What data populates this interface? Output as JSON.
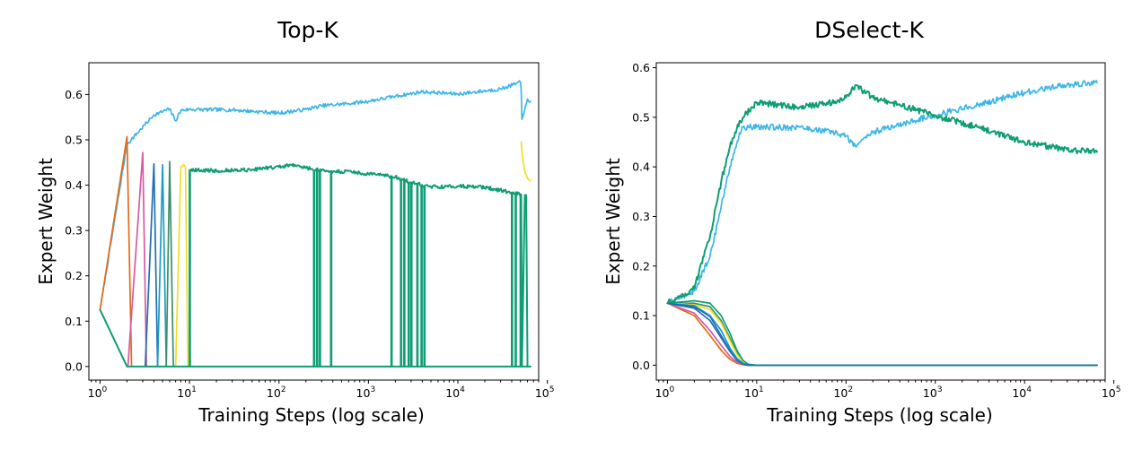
{
  "chart_data": [
    {
      "type": "line",
      "title": "Top-K",
      "xlabel": "Training Steps (log scale)",
      "ylabel": "Expert Weight",
      "xscale": "log",
      "xlim": [
        0.75,
        80000
      ],
      "ylim": [
        -0.03,
        0.67
      ],
      "xticks": [
        {
          "base": "10",
          "exp": "0",
          "value": 1
        },
        {
          "base": "10",
          "exp": "1",
          "value": 10
        },
        {
          "base": "10",
          "exp": "2",
          "value": 100
        },
        {
          "base": "10",
          "exp": "3",
          "value": 1000
        },
        {
          "base": "10",
          "exp": "4",
          "value": 10000
        },
        {
          "base": "10",
          "exp": "5",
          "value": 100000
        }
      ],
      "yticks": [
        "0.0",
        "0.1",
        "0.2",
        "0.3",
        "0.4",
        "0.5",
        "0.6"
      ],
      "grid": false,
      "legend": "none",
      "series": [
        {
          "color": "#3db6e6",
          "width": 1.7,
          "noise": 0.004,
          "x": [
            1,
            2,
            4,
            6,
            7,
            8,
            10,
            30,
            100,
            200,
            300,
            600,
            1000,
            2000,
            4000,
            10000,
            30000,
            50000,
            51000,
            52000,
            55000,
            60000,
            65000
          ],
          "y": [
            0.125,
            0.49,
            0.555,
            0.568,
            0.542,
            0.565,
            0.567,
            0.566,
            0.559,
            0.567,
            0.575,
            0.58,
            0.585,
            0.596,
            0.606,
            0.601,
            0.612,
            0.627,
            0.61,
            0.545,
            0.56,
            0.59,
            0.585
          ]
        },
        {
          "color": "#e36a18",
          "width": 1.7,
          "x": [
            1,
            2,
            2.25
          ],
          "y": [
            0.125,
            0.507,
            0
          ]
        },
        {
          "color": "#d65aa2",
          "width": 1.7,
          "x": [
            2.05,
            3,
            3.3
          ],
          "y": [
            0,
            0.472,
            0
          ]
        },
        {
          "color": "#1e6fb3",
          "width": 1.7,
          "x": [
            3.2,
            4,
            4.4
          ],
          "y": [
            0,
            0.447,
            0
          ]
        },
        {
          "color": "#1a9bc4",
          "width": 1.7,
          "x": [
            4.4,
            5,
            5.5
          ],
          "y": [
            0,
            0.445,
            0
          ]
        },
        {
          "color": "#3a8e6a",
          "width": 1.7,
          "x": [
            5.5,
            6,
            6.6
          ],
          "y": [
            0,
            0.452,
            0
          ]
        },
        {
          "color": "#f0df20",
          "width": 1.7,
          "x": [
            7,
            8,
            8.6,
            9,
            9.6,
            10
          ],
          "y": [
            0,
            0.44,
            0.445,
            0.44,
            0,
            0
          ]
        },
        {
          "color": "#f0df20",
          "width": 1.7,
          "noise": 0.003,
          "x": [
            51000,
            53000,
            56000,
            60000,
            65000
          ],
          "y": [
            0.495,
            0.46,
            0.43,
            0.415,
            0.41
          ]
        },
        {
          "color": "#0f9e74",
          "width": 2,
          "noise": 0.004,
          "x": [
            10,
            20,
            50,
            100,
            150,
            200,
            300,
            500,
            1000,
            2000,
            3000,
            5000,
            10000,
            20000,
            40000,
            50000,
            51000
          ],
          "y": [
            0.433,
            0.432,
            0.434,
            0.44,
            0.445,
            0.438,
            0.432,
            0.43,
            0.425,
            0.418,
            0.406,
            0.396,
            0.398,
            0.395,
            0.384,
            0.38,
            0.378
          ],
          "dropouts": [
            10,
            245,
            265,
            285,
            380,
            1800,
            2300,
            2500,
            2800,
            3000,
            3500,
            3900,
            4200,
            40000,
            44000,
            50000
          ],
          "tail": [
            [
              52000,
              0
            ],
            [
              56000,
              0.378
            ],
            [
              58000,
              0.378
            ],
            [
              60000,
              0
            ]
          ]
        },
        {
          "color": "#0f9e74",
          "width": 2,
          "x": [
            1,
            2,
            65000
          ],
          "y": [
            0.125,
            0,
            0
          ]
        }
      ]
    },
    {
      "type": "line",
      "title": "DSelect-K",
      "xlabel": "Training Steps (log scale)",
      "ylabel": "Expert Weight",
      "xscale": "log",
      "xlim": [
        0.75,
        80000
      ],
      "ylim": [
        -0.03,
        0.61
      ],
      "xticks": [
        {
          "base": "10",
          "exp": "0",
          "value": 1
        },
        {
          "base": "10",
          "exp": "1",
          "value": 10
        },
        {
          "base": "10",
          "exp": "2",
          "value": 100
        },
        {
          "base": "10",
          "exp": "3",
          "value": 1000
        },
        {
          "base": "10",
          "exp": "4",
          "value": 10000
        },
        {
          "base": "10",
          "exp": "5",
          "value": 100000
        }
      ],
      "yticks": [
        "0.0",
        "0.1",
        "0.2",
        "0.3",
        "0.4",
        "0.5",
        "0.6"
      ],
      "grid": false,
      "legend": "none",
      "series": [
        {
          "color": "#3db6e6",
          "width": 1.7,
          "noise": 0.006,
          "x": [
            1,
            2,
            3,
            4,
            5,
            6,
            7,
            10,
            30,
            70,
            100,
            130,
            150,
            200,
            500,
            1000,
            3000,
            10000,
            30000,
            65000
          ],
          "y": [
            0.125,
            0.15,
            0.22,
            0.32,
            0.4,
            0.45,
            0.48,
            0.48,
            0.48,
            0.47,
            0.462,
            0.44,
            0.455,
            0.47,
            0.49,
            0.505,
            0.525,
            0.55,
            0.565,
            0.57
          ]
        },
        {
          "color": "#0f9e74",
          "width": 2,
          "noise": 0.006,
          "x": [
            1,
            2,
            3,
            4,
            5,
            6,
            7,
            10,
            30,
            70,
            100,
            130,
            150,
            200,
            500,
            1000,
            3000,
            10000,
            30000,
            65000
          ],
          "y": [
            0.125,
            0.155,
            0.26,
            0.37,
            0.44,
            0.478,
            0.5,
            0.53,
            0.52,
            0.53,
            0.54,
            0.565,
            0.555,
            0.54,
            0.52,
            0.503,
            0.48,
            0.45,
            0.435,
            0.43
          ]
        },
        {
          "color": "#e36a18",
          "width": 1.7,
          "x": [
            1,
            2,
            3,
            4,
            5,
            6,
            7,
            8,
            10,
            65000
          ],
          "y": [
            0.125,
            0.1,
            0.06,
            0.03,
            0.012,
            0.004,
            0.001,
            0,
            0,
            0
          ]
        },
        {
          "color": "#d65aa2",
          "width": 1.7,
          "x": [
            1,
            2,
            3,
            4,
            5,
            6,
            7,
            8,
            10,
            65000
          ],
          "y": [
            0.125,
            0.105,
            0.07,
            0.04,
            0.018,
            0.006,
            0.002,
            0,
            0,
            0
          ]
        },
        {
          "color": "#1e6fb3",
          "width": 1.7,
          "x": [
            1,
            2,
            3,
            4,
            5,
            6,
            7,
            8,
            10,
            65000
          ],
          "y": [
            0.125,
            0.115,
            0.09,
            0.055,
            0.028,
            0.01,
            0.003,
            0,
            0,
            0
          ]
        },
        {
          "color": "#3a8e6a",
          "width": 1.7,
          "x": [
            1,
            2,
            3,
            4,
            5,
            6,
            7,
            8,
            10,
            65000
          ],
          "y": [
            0.125,
            0.125,
            0.118,
            0.09,
            0.055,
            0.025,
            0.008,
            0.002,
            0,
            0
          ]
        },
        {
          "color": "#f0df20",
          "width": 1.7,
          "x": [
            1,
            2,
            3,
            4,
            5,
            6,
            7,
            8,
            10,
            65000
          ],
          "y": [
            0.125,
            0.122,
            0.112,
            0.085,
            0.05,
            0.022,
            0.007,
            0.001,
            0,
            0
          ]
        },
        {
          "color": "#1a9bc4",
          "width": 1.7,
          "x": [
            1,
            2,
            3,
            4,
            5,
            6,
            7,
            8,
            10,
            65000
          ],
          "y": [
            0.125,
            0.12,
            0.1,
            0.07,
            0.035,
            0.014,
            0.004,
            0,
            0,
            0
          ]
        },
        {
          "color": "#0f9e74",
          "width": 1.7,
          "x": [
            1,
            2,
            3,
            4,
            5,
            6,
            7,
            8,
            10,
            65000
          ],
          "y": [
            0.125,
            0.13,
            0.125,
            0.1,
            0.065,
            0.03,
            0.01,
            0.002,
            0,
            0
          ]
        },
        {
          "color": "#1e6fb3",
          "width": 1.5,
          "x": [
            1,
            2,
            3,
            4,
            5,
            6,
            7,
            8,
            10,
            65000
          ],
          "y": [
            0.125,
            0.118,
            0.098,
            0.06,
            0.03,
            0.01,
            0.002,
            0,
            0,
            0
          ]
        }
      ]
    }
  ]
}
